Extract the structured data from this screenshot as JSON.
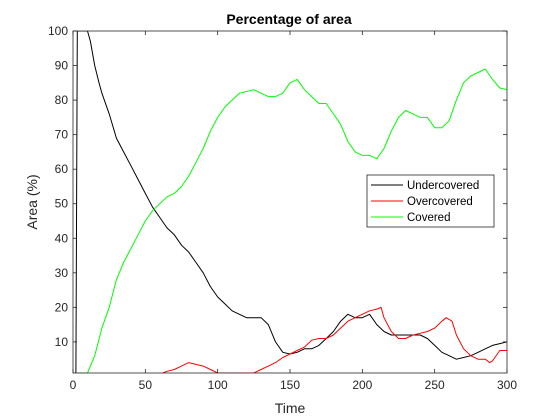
{
  "chart_data": {
    "type": "line",
    "title": "Percentage of area",
    "xlabel": "Time",
    "ylabel": "Area (%)",
    "xlim": [
      0,
      300
    ],
    "ylim": [
      1,
      100
    ],
    "xticks": [
      0,
      50,
      100,
      150,
      200,
      250,
      300
    ],
    "yticks": [
      10,
      20,
      30,
      40,
      50,
      60,
      70,
      80,
      90,
      100
    ],
    "grid": false,
    "legend_position": "right",
    "series": [
      {
        "name": "Undercovered",
        "color": "#000000",
        "x": [
          0,
          2,
          3,
          5,
          10,
          12,
          15,
          18,
          20,
          25,
          30,
          35,
          40,
          45,
          50,
          55,
          60,
          65,
          70,
          75,
          80,
          85,
          90,
          95,
          100,
          105,
          110,
          115,
          120,
          125,
          130,
          135,
          140,
          145,
          150,
          155,
          160,
          165,
          170,
          175,
          180,
          185,
          190,
          195,
          200,
          205,
          210,
          215,
          220,
          225,
          230,
          235,
          240,
          245,
          250,
          255,
          260,
          265,
          270,
          275,
          280,
          285,
          290,
          295,
          300
        ],
        "y": [
          1,
          1,
          100,
          100,
          100,
          97,
          90,
          85,
          82,
          76,
          69,
          65,
          61,
          57,
          53,
          49,
          46,
          43,
          41,
          38,
          36,
          33,
          30,
          26,
          23,
          21,
          19,
          18,
          17,
          17,
          17,
          15,
          10,
          7,
          6.5,
          7,
          8,
          8,
          9,
          11,
          13,
          16,
          18,
          17,
          17,
          18,
          15,
          13,
          12,
          12,
          12,
          12,
          12,
          11,
          9,
          7,
          6,
          5,
          5.5,
          6,
          7,
          8,
          9,
          9.5,
          10
        ]
      },
      {
        "name": "Overcovered",
        "color": "#ff0000",
        "x": [
          62,
          65,
          70,
          75,
          80,
          85,
          90,
          95,
          100,
          105,
          110,
          115,
          120,
          125,
          130,
          135,
          140,
          145,
          150,
          155,
          160,
          165,
          170,
          175,
          180,
          185,
          190,
          195,
          200,
          205,
          210,
          213,
          215,
          220,
          225,
          230,
          235,
          240,
          245,
          250,
          255,
          258,
          262,
          265,
          270,
          275,
          280,
          285,
          288,
          290,
          295,
          300
        ],
        "y": [
          1,
          1.5,
          2,
          3,
          4,
          3.5,
          3,
          2,
          1,
          1,
          1,
          1,
          1,
          1,
          2,
          3,
          4,
          5.5,
          6.5,
          7.5,
          8.5,
          10.5,
          11,
          11,
          12,
          14,
          16,
          17,
          18,
          19,
          19.5,
          20,
          17,
          13,
          11,
          11,
          12,
          12.5,
          13,
          14,
          16,
          17,
          16,
          12,
          8,
          6,
          5,
          5,
          4,
          4.5,
          7.5,
          7.5
        ]
      },
      {
        "name": "Covered",
        "color": "#00ff00",
        "x": [
          0,
          10,
          15,
          20,
          25,
          30,
          35,
          40,
          45,
          50,
          55,
          60,
          65,
          70,
          75,
          80,
          85,
          90,
          95,
          100,
          105,
          110,
          115,
          120,
          125,
          130,
          135,
          140,
          145,
          150,
          155,
          160,
          165,
          170,
          175,
          180,
          185,
          190,
          195,
          200,
          205,
          210,
          215,
          220,
          225,
          230,
          235,
          240,
          245,
          250,
          255,
          260,
          265,
          270,
          275,
          280,
          285,
          290,
          295,
          300
        ],
        "y": [
          1,
          1,
          6,
          14,
          20,
          28,
          33,
          37,
          41,
          45,
          48,
          50,
          52,
          53,
          55,
          58,
          62,
          66,
          71,
          75,
          78,
          80,
          82,
          82.5,
          83,
          82,
          81,
          81,
          82,
          85,
          86,
          83,
          81,
          79,
          79,
          76,
          73,
          68,
          65,
          64,
          64,
          63,
          66,
          71,
          75,
          77,
          76,
          75,
          75,
          72,
          72,
          74,
          80,
          85,
          87,
          88,
          89,
          86,
          83.5,
          83
        ]
      }
    ]
  }
}
